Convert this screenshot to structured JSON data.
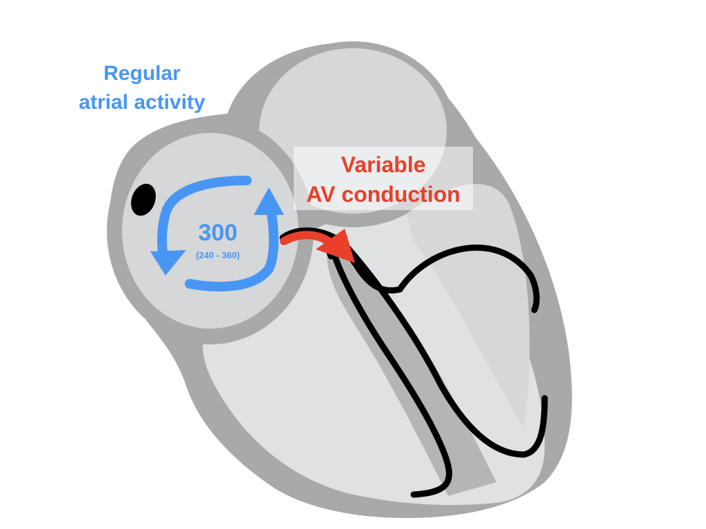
{
  "colors": {
    "background": "#ffffff",
    "tissue_outer": "#a9a9a9",
    "tissue_inner": "#e0e1e3",
    "chamber_fill": "#d6d7d9",
    "septum_fill": "#b5b5b6",
    "conduction_line": "#000000",
    "atrial_blue": "#4896f3",
    "av_red": "#e8402a"
  },
  "labels": {
    "atrial_line1": "Regular",
    "atrial_line2": "atrial activity",
    "rate_value": "300",
    "rate_range": "(240 - 360)",
    "av_line1": "Variable",
    "av_line2": "AV conduction"
  },
  "icons": {
    "circuit": "circular-arrows-icon",
    "av_arrow": "curved-arrow-icon",
    "sa_node": "node-dot-icon"
  }
}
